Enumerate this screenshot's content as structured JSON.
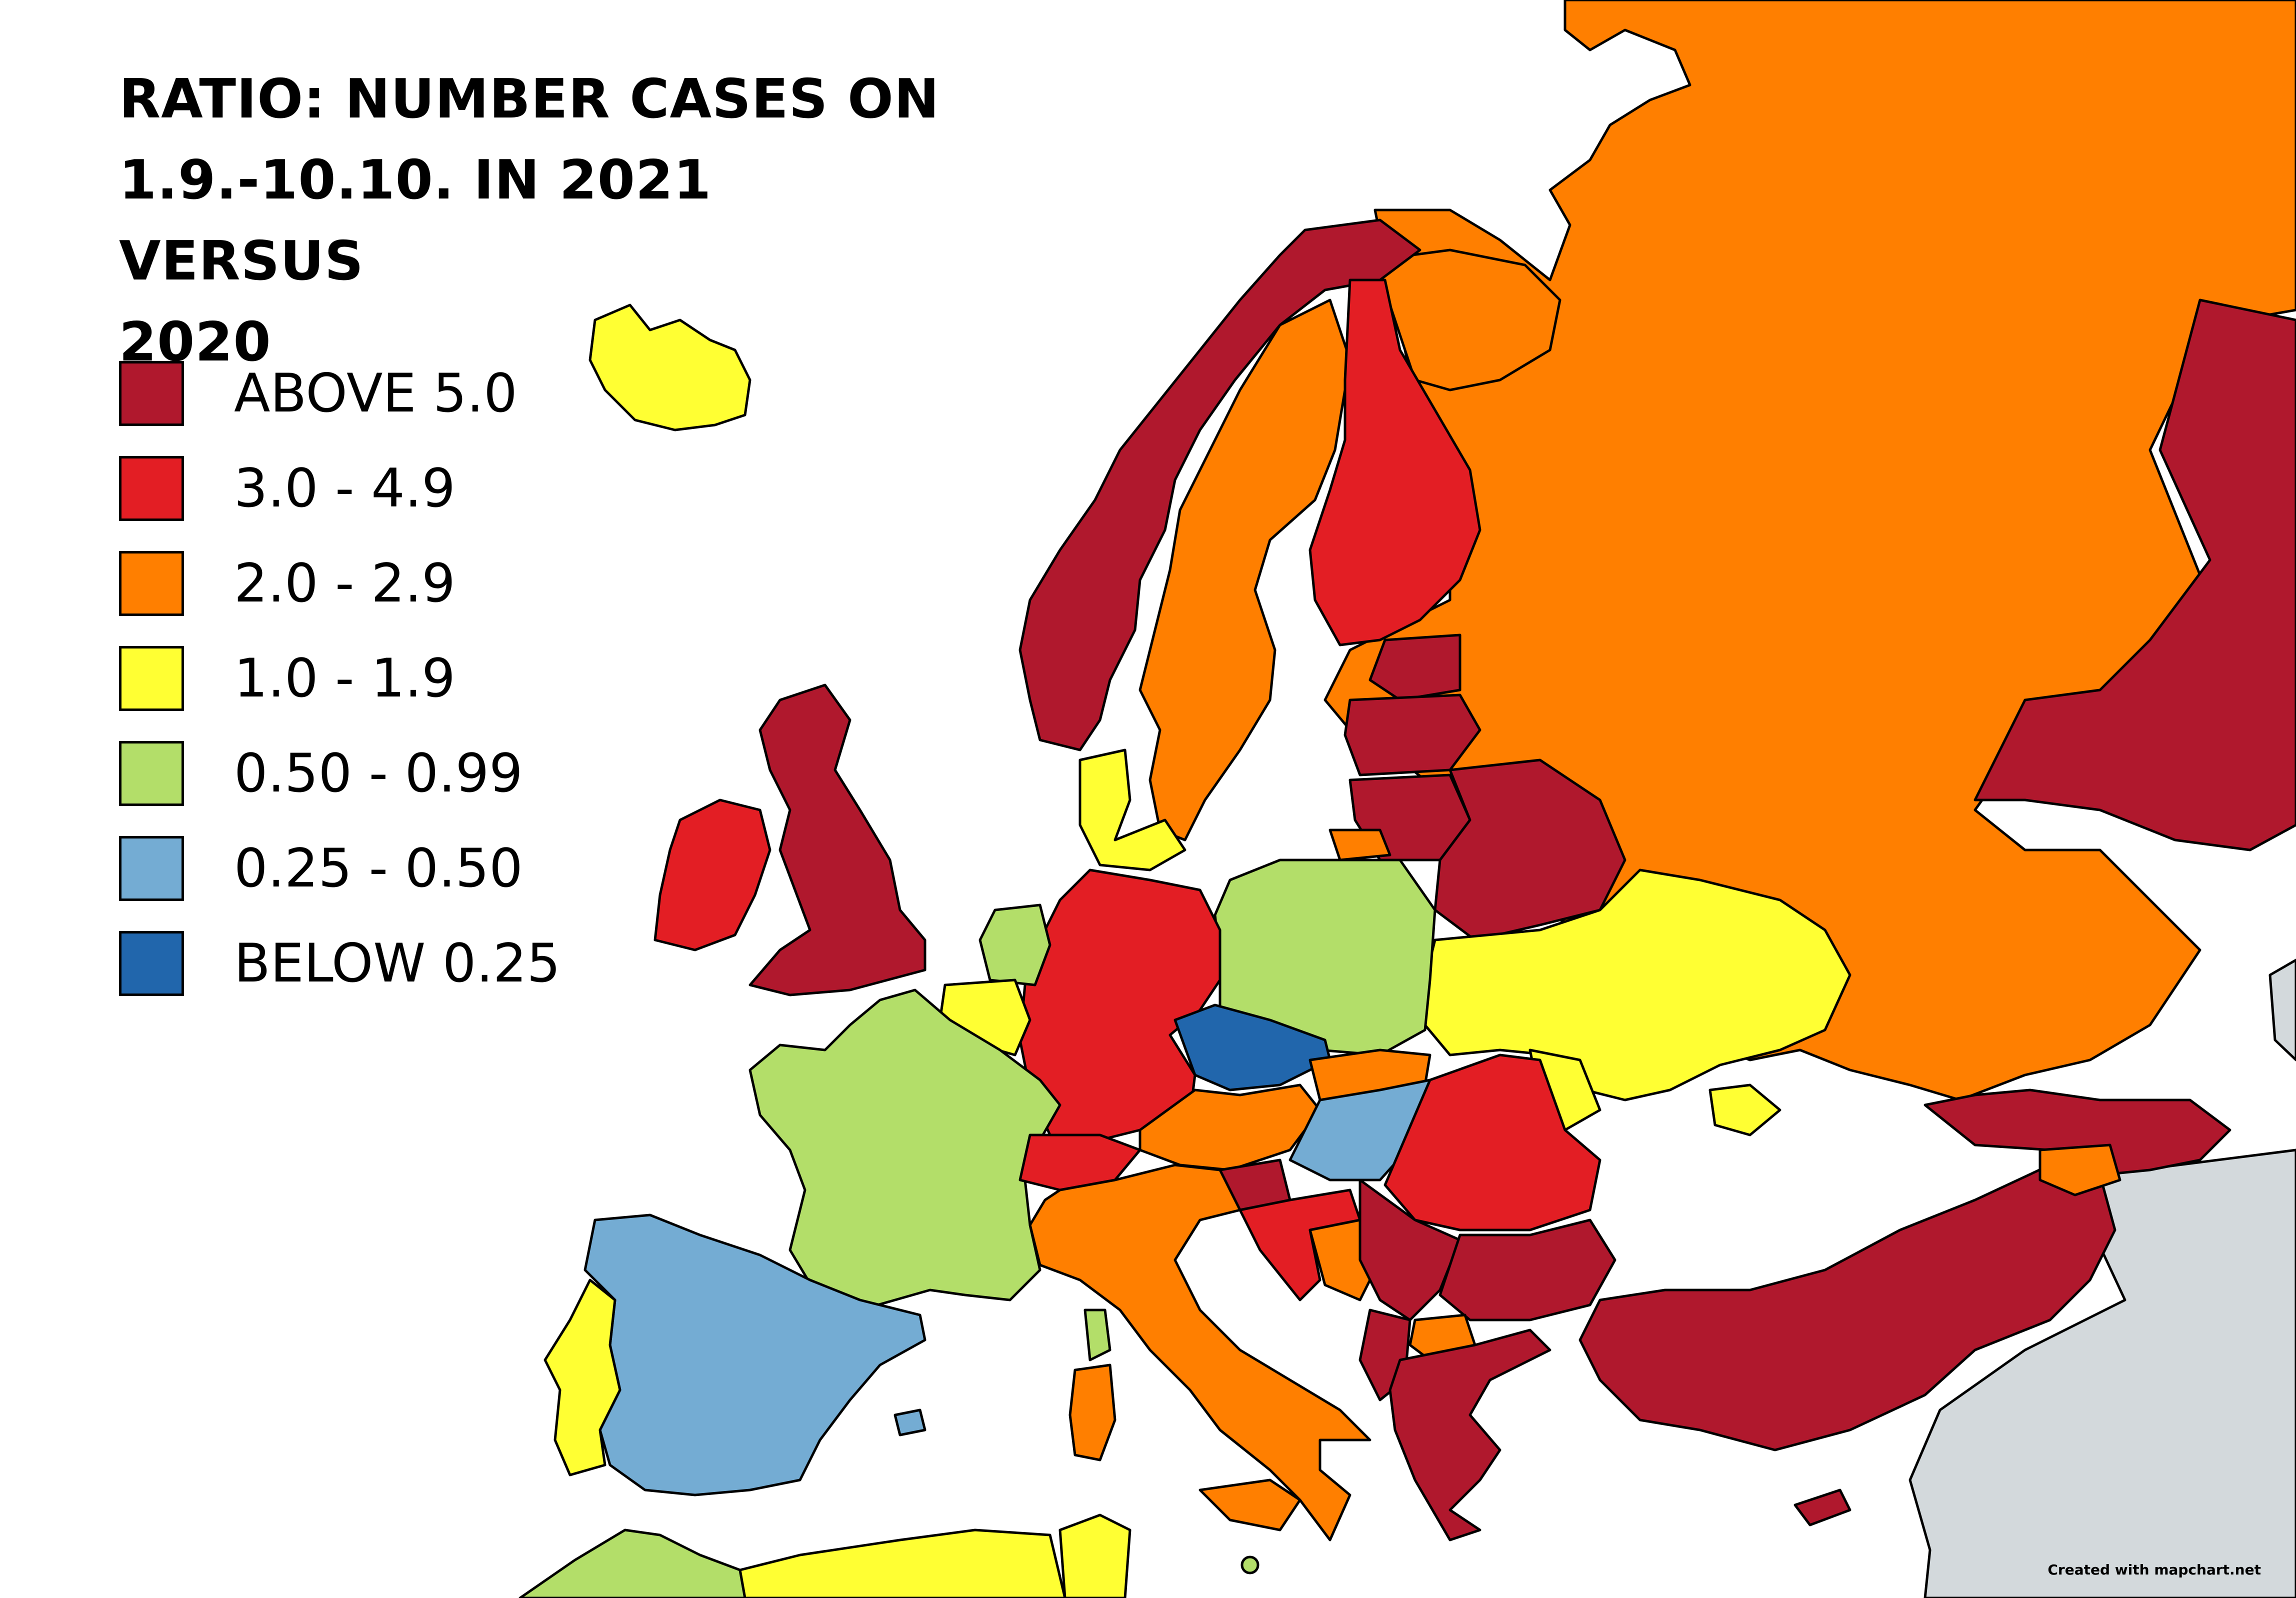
{
  "title_lines": [
    "RATIO: NUMBER CASES ON",
    "1.9.-10.10. IN 2021 VERSUS",
    "2020"
  ],
  "legend": [
    {
      "label": "ABOVE 5.0",
      "color": "#b0182d"
    },
    {
      "label": "3.0 - 4.9",
      "color": "#e31e24"
    },
    {
      "label": "2.0 - 2.9",
      "color": "#ff7f00"
    },
    {
      "label": "1.0 - 1.9",
      "color": "#ffff33"
    },
    {
      "label": "0.50 - 0.99",
      "color": "#b3de69"
    },
    {
      "label": "0.25 - 0.50",
      "color": "#74acd3"
    },
    {
      "label": "BELOW 0.25",
      "color": "#2166ac"
    }
  ],
  "credit": "Created with mapchart.net",
  "colors": {
    "no_data": "#d3d9dc",
    "sea": "#ffffff",
    "border": "#000000"
  },
  "regions": [
    {
      "name": "iceland",
      "category": "1.0 - 1.9"
    },
    {
      "name": "ireland",
      "category": "3.0 - 4.9"
    },
    {
      "name": "united-kingdom",
      "category": "ABOVE 5.0"
    },
    {
      "name": "norway",
      "category": "ABOVE 5.0"
    },
    {
      "name": "sweden",
      "category": "2.0 - 2.9"
    },
    {
      "name": "finland",
      "category": "3.0 - 4.9"
    },
    {
      "name": "russia",
      "category": "2.0 - 2.9"
    },
    {
      "name": "kazakhstan",
      "category": "ABOVE 5.0"
    },
    {
      "name": "estonia",
      "category": "ABOVE 5.0"
    },
    {
      "name": "latvia",
      "category": "ABOVE 5.0"
    },
    {
      "name": "lithuania",
      "category": "ABOVE 5.0"
    },
    {
      "name": "belarus",
      "category": "ABOVE 5.0"
    },
    {
      "name": "denmark",
      "category": "1.0 - 1.9"
    },
    {
      "name": "netherlands",
      "category": "0.50 - 0.99"
    },
    {
      "name": "belgium",
      "category": "1.0 - 1.9"
    },
    {
      "name": "germany",
      "category": "3.0 - 4.9"
    },
    {
      "name": "poland",
      "category": "0.50 - 0.99"
    },
    {
      "name": "ukraine",
      "category": "1.0 - 1.9"
    },
    {
      "name": "france",
      "category": "0.50 - 0.99"
    },
    {
      "name": "czechia",
      "category": "BELOW 0.25"
    },
    {
      "name": "slovakia",
      "category": "2.0 - 2.9"
    },
    {
      "name": "hungary",
      "category": "0.25 - 0.50"
    },
    {
      "name": "austria",
      "category": "2.0 - 2.9"
    },
    {
      "name": "switzerland",
      "category": "3.0 - 4.9"
    },
    {
      "name": "slovenia",
      "category": "ABOVE 5.0"
    },
    {
      "name": "croatia",
      "category": "3.0 - 4.9"
    },
    {
      "name": "bosnia",
      "category": "2.0 - 2.9"
    },
    {
      "name": "serbia",
      "category": "ABOVE 5.0"
    },
    {
      "name": "romania",
      "category": "3.0 - 4.9"
    },
    {
      "name": "moldova",
      "category": "1.0 - 1.9"
    },
    {
      "name": "bulgaria",
      "category": "ABOVE 5.0"
    },
    {
      "name": "north-macedonia",
      "category": "2.0 - 2.9"
    },
    {
      "name": "albania",
      "category": "ABOVE 5.0"
    },
    {
      "name": "greece",
      "category": "ABOVE 5.0"
    },
    {
      "name": "turkey",
      "category": "ABOVE 5.0"
    },
    {
      "name": "georgia",
      "category": "ABOVE 5.0"
    },
    {
      "name": "armenia",
      "category": "2.0 - 2.9"
    },
    {
      "name": "cyprus",
      "category": "ABOVE 5.0"
    },
    {
      "name": "italy",
      "category": "2.0 - 2.9"
    },
    {
      "name": "sardinia",
      "category": "2.0 - 2.9"
    },
    {
      "name": "corsica",
      "category": "0.50 - 0.99"
    },
    {
      "name": "spain",
      "category": "0.25 - 0.50"
    },
    {
      "name": "balearic-islands",
      "category": "0.25 - 0.50"
    },
    {
      "name": "portugal",
      "category": "1.0 - 1.9"
    },
    {
      "name": "morocco",
      "category": "0.50 - 0.99"
    },
    {
      "name": "algeria",
      "category": "1.0 - 1.9"
    },
    {
      "name": "tunisia",
      "category": "1.0 - 1.9"
    },
    {
      "name": "kaliningrad",
      "category": "2.0 - 2.9"
    },
    {
      "name": "crimea",
      "category": "1.0 - 1.9"
    },
    {
      "name": "malta",
      "category": "0.50 - 0.99"
    }
  ]
}
